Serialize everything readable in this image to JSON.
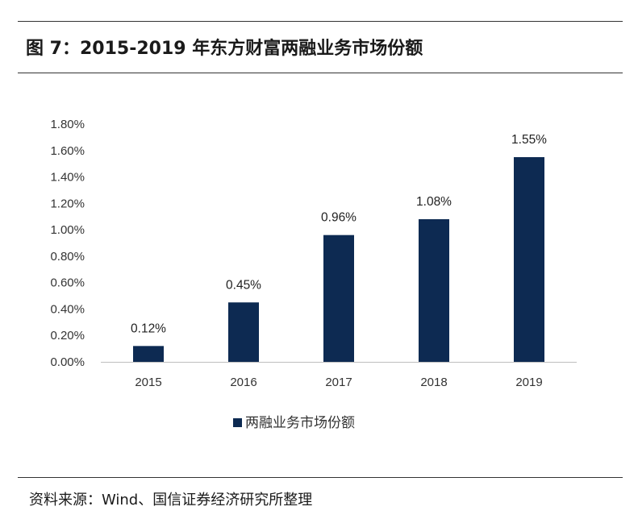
{
  "header": {
    "title": "图 7：2015-2019 年东方财富两融业务市场份额"
  },
  "footer": {
    "source": "资料来源：Wind、国信证券经济研究所整理"
  },
  "chart_data": {
    "type": "bar",
    "categories": [
      "2015",
      "2016",
      "2017",
      "2018",
      "2019"
    ],
    "series": [
      {
        "name": "两融业务市场份额",
        "values": [
          0.12,
          0.45,
          0.96,
          1.08,
          1.55
        ],
        "color": "#0d2a52"
      }
    ],
    "data_labels": [
      "0.12%",
      "0.45%",
      "0.96%",
      "1.08%",
      "1.55%"
    ],
    "y_ticks": [
      "0.00%",
      "0.20%",
      "0.40%",
      "0.60%",
      "0.80%",
      "1.00%",
      "1.20%",
      "1.40%",
      "1.60%",
      "1.80%"
    ],
    "ylim": [
      0,
      1.8
    ],
    "xlabel": "",
    "ylabel": "",
    "grid": false,
    "legend_position": "bottom"
  }
}
